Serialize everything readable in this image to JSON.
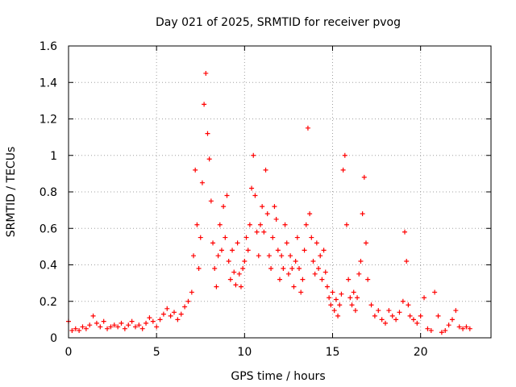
{
  "chart_data": {
    "type": "scatter",
    "title": "Day 021 of 2025, SRMTID for receiver pvog",
    "xlabel": "GPS time / hours",
    "ylabel": "SRMTID / TECUs",
    "xlim": [
      0,
      24
    ],
    "ylim": [
      0,
      1.6
    ],
    "xticks": [
      0,
      5,
      10,
      15,
      20
    ],
    "xtick_labels": [
      "0",
      "5",
      "10",
      "15",
      "20"
    ],
    "yticks": [
      0,
      0.2,
      0.4,
      0.6,
      0.8,
      1.0,
      1.2,
      1.4,
      1.6
    ],
    "ytick_labels": [
      "0",
      "0.2",
      "0.4",
      "0.6",
      "0.8",
      "1",
      "1.2",
      "1.4",
      "1.6"
    ],
    "grid": true,
    "marker": "+",
    "marker_color": "#ff0000",
    "series": [
      {
        "name": "SRMTID",
        "x": [
          0.0,
          0.2,
          0.4,
          0.6,
          0.8,
          1.0,
          1.2,
          1.4,
          1.6,
          1.8,
          2.0,
          2.2,
          2.4,
          2.6,
          2.8,
          3.0,
          3.2,
          3.4,
          3.6,
          3.8,
          4.0,
          4.2,
          4.4,
          4.6,
          4.8,
          5.0,
          5.2,
          5.4,
          5.6,
          5.8,
          6.0,
          6.2,
          6.4,
          6.6,
          6.8,
          7.0,
          7.1,
          7.2,
          7.3,
          7.4,
          7.5,
          7.6,
          7.7,
          7.8,
          7.9,
          8.0,
          8.1,
          8.2,
          8.3,
          8.4,
          8.5,
          8.6,
          8.7,
          8.8,
          8.9,
          9.0,
          9.1,
          9.2,
          9.3,
          9.4,
          9.5,
          9.6,
          9.7,
          9.8,
          9.9,
          10.0,
          10.1,
          10.2,
          10.3,
          10.4,
          10.5,
          10.6,
          10.7,
          10.8,
          10.9,
          11.0,
          11.1,
          11.2,
          11.3,
          11.4,
          11.5,
          11.6,
          11.7,
          11.8,
          11.9,
          12.0,
          12.1,
          12.2,
          12.3,
          12.4,
          12.5,
          12.6,
          12.7,
          12.8,
          12.9,
          13.0,
          13.1,
          13.2,
          13.3,
          13.4,
          13.5,
          13.6,
          13.7,
          13.8,
          13.9,
          14.0,
          14.1,
          14.2,
          14.3,
          14.4,
          14.5,
          14.6,
          14.7,
          14.8,
          14.9,
          15.0,
          15.1,
          15.2,
          15.3,
          15.4,
          15.5,
          15.6,
          15.7,
          15.8,
          15.9,
          16.0,
          16.1,
          16.2,
          16.3,
          16.4,
          16.5,
          16.6,
          16.7,
          16.8,
          16.9,
          17.0,
          17.2,
          17.4,
          17.6,
          17.8,
          18.0,
          18.2,
          18.4,
          18.6,
          18.8,
          19.0,
          19.1,
          19.2,
          19.3,
          19.4,
          19.6,
          19.8,
          20.0,
          20.2,
          20.4,
          20.6,
          20.8,
          21.0,
          21.2,
          21.4,
          21.6,
          21.8,
          22.0,
          22.2,
          22.4,
          22.6,
          22.8
        ],
        "y": [
          0.09,
          0.04,
          0.05,
          0.04,
          0.06,
          0.05,
          0.07,
          0.12,
          0.08,
          0.06,
          0.09,
          0.05,
          0.06,
          0.07,
          0.06,
          0.08,
          0.05,
          0.07,
          0.09,
          0.06,
          0.07,
          0.05,
          0.08,
          0.11,
          0.09,
          0.06,
          0.1,
          0.13,
          0.16,
          0.12,
          0.14,
          0.1,
          0.13,
          0.17,
          0.2,
          0.25,
          0.45,
          0.92,
          0.62,
          0.38,
          0.55,
          0.85,
          1.28,
          1.45,
          1.12,
          0.98,
          0.75,
          0.52,
          0.38,
          0.28,
          0.45,
          0.62,
          0.48,
          0.72,
          0.55,
          0.78,
          0.42,
          0.32,
          0.48,
          0.36,
          0.29,
          0.52,
          0.35,
          0.28,
          0.38,
          0.42,
          0.55,
          0.48,
          0.62,
          0.82,
          1.0,
          0.78,
          0.58,
          0.45,
          0.62,
          0.72,
          0.58,
          0.92,
          0.68,
          0.45,
          0.38,
          0.55,
          0.72,
          0.65,
          0.48,
          0.32,
          0.45,
          0.38,
          0.62,
          0.52,
          0.35,
          0.45,
          0.38,
          0.28,
          0.42,
          0.55,
          0.38,
          0.25,
          0.32,
          0.48,
          0.62,
          1.15,
          0.68,
          0.55,
          0.42,
          0.35,
          0.52,
          0.38,
          0.45,
          0.32,
          0.48,
          0.36,
          0.28,
          0.22,
          0.18,
          0.25,
          0.15,
          0.21,
          0.12,
          0.18,
          0.24,
          0.92,
          1.0,
          0.62,
          0.32,
          0.22,
          0.18,
          0.25,
          0.15,
          0.22,
          0.35,
          0.42,
          0.68,
          0.88,
          0.52,
          0.32,
          0.18,
          0.12,
          0.15,
          0.1,
          0.08,
          0.15,
          0.12,
          0.1,
          0.14,
          0.2,
          0.58,
          0.42,
          0.18,
          0.12,
          0.1,
          0.08,
          0.12,
          0.22,
          0.05,
          0.04,
          0.25,
          0.12,
          0.03,
          0.04,
          0.07,
          0.1,
          0.15,
          0.06,
          0.05,
          0.06,
          0.05
        ]
      }
    ]
  }
}
